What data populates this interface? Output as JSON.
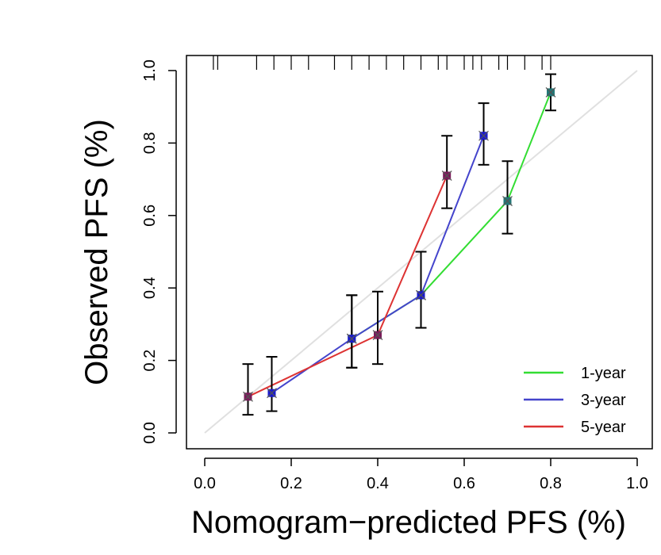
{
  "chart_data": {
    "type": "line",
    "title": "",
    "xlabel": "Nomogram−predicted PFS (%)",
    "ylabel": "Observed PFS (%)",
    "xlim": [
      0.0,
      1.0
    ],
    "ylim": [
      0.0,
      1.0
    ],
    "x_ticks": [
      "0.0",
      "0.2",
      "0.4",
      "0.6",
      "0.8",
      "1.0"
    ],
    "y_ticks": [
      "0.0",
      "0.2",
      "0.4",
      "0.6",
      "0.8",
      "1.0"
    ],
    "legend_position": "bottom-right",
    "grid": false,
    "reference_line": {
      "from": [
        0,
        0
      ],
      "to": [
        1,
        1
      ],
      "color": "#e0e0e0"
    },
    "rug_x": [
      0.02,
      0.03,
      0.12,
      0.16,
      0.2,
      0.24,
      0.3,
      0.34,
      0.38,
      0.42,
      0.46,
      0.5,
      0.54,
      0.56,
      0.6,
      0.62,
      0.64,
      0.68,
      0.7,
      0.74,
      0.78,
      0.8
    ],
    "series": [
      {
        "name": "1-year",
        "color": "#33dd33",
        "points": [
          {
            "x": 0.34,
            "y": 0.26,
            "lower": 0.18,
            "upper": 0.38
          },
          {
            "x": 0.5,
            "y": 0.38,
            "lower": 0.29,
            "upper": 0.5
          },
          {
            "x": 0.7,
            "y": 0.64,
            "lower": 0.55,
            "upper": 0.75
          },
          {
            "x": 0.8,
            "y": 0.94,
            "lower": 0.89,
            "upper": 0.99
          }
        ]
      },
      {
        "name": "3-year",
        "color": "#4444cc",
        "points": [
          {
            "x": 0.155,
            "y": 0.11,
            "lower": 0.06,
            "upper": 0.21
          },
          {
            "x": 0.34,
            "y": 0.26,
            "lower": 0.18,
            "upper": 0.38
          },
          {
            "x": 0.5,
            "y": 0.38,
            "lower": 0.29,
            "upper": 0.5
          },
          {
            "x": 0.645,
            "y": 0.82,
            "lower": 0.74,
            "upper": 0.91
          }
        ]
      },
      {
        "name": "5-year",
        "color": "#dd3333",
        "points": [
          {
            "x": 0.1,
            "y": 0.1,
            "lower": 0.05,
            "upper": 0.19
          },
          {
            "x": 0.4,
            "y": 0.27,
            "lower": 0.19,
            "upper": 0.39
          },
          {
            "x": 0.56,
            "y": 0.71,
            "lower": 0.62,
            "upper": 0.82
          }
        ]
      }
    ]
  }
}
